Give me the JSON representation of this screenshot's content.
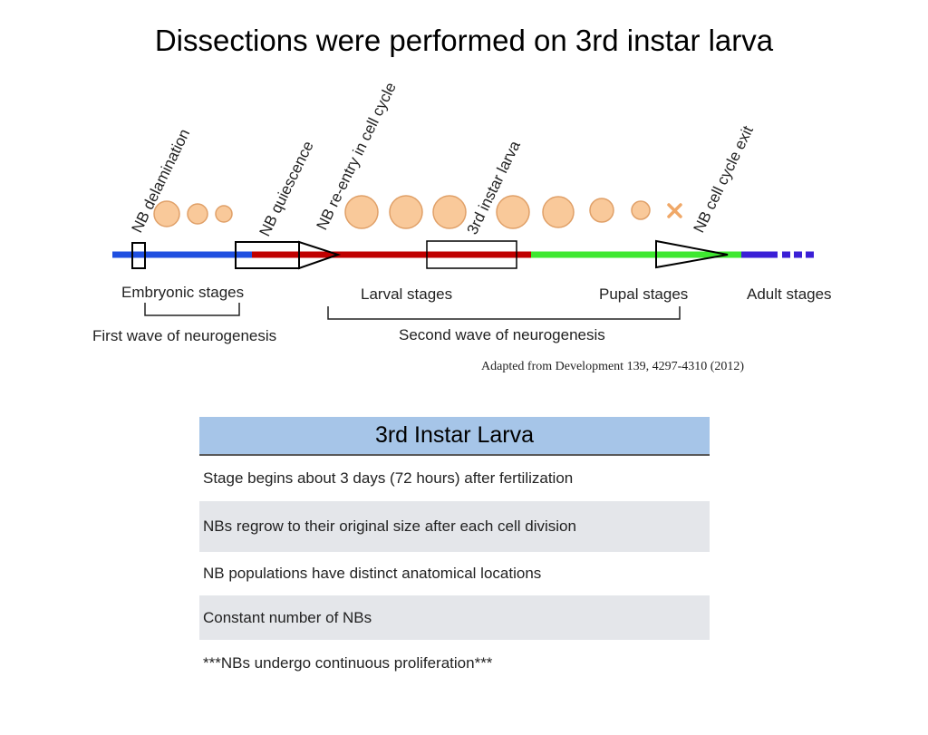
{
  "title": "Dissections were performed on 3rd instar larva",
  "diagram": {
    "event_labels": [
      "NB delamination",
      "NB quiescence",
      "NB re-entry in cell cycle",
      "3rd instar larva",
      "NB cell cycle exit"
    ],
    "stage_labels": [
      "Embryonic stages",
      "Larval stages",
      "Pupal stages",
      "Adult stages"
    ],
    "wave_labels": [
      "First wave of neurogenesis",
      "Second wave of neurogenesis"
    ],
    "colors": {
      "embryonic": "#1f4fe0",
      "larval": "#c00000",
      "pupal": "#3ee830",
      "adult": "#3a1fd6",
      "cell_fill": "#f9c99a",
      "cell_stroke": "#e0a068"
    }
  },
  "credit": "Adapted from Development 139, 4297-4310 (2012)",
  "table": {
    "header": "3rd Instar Larva",
    "rows": [
      "Stage begins about 3 days (72 hours) after fertilization",
      "NBs regrow to their original size after each cell division",
      "NB populations have distinct anatomical locations",
      "Constant number of NBs",
      "***NBs undergo continuous proliferation***"
    ]
  }
}
